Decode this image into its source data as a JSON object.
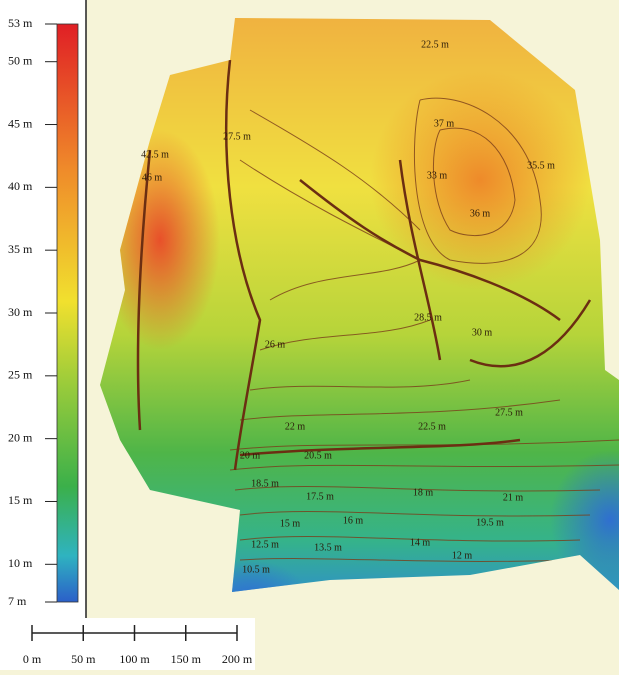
{
  "legend": {
    "lim": [
      7,
      53
    ],
    "ticks": [
      {
        "value": 53,
        "label": "53 m"
      },
      {
        "value": 50,
        "label": "50 m"
      },
      {
        "value": 45,
        "label": "45 m"
      },
      {
        "value": 40,
        "label": "40 m"
      },
      {
        "value": 35,
        "label": "35 m"
      },
      {
        "value": 30,
        "label": "30 m"
      },
      {
        "value": 25,
        "label": "25 m"
      },
      {
        "value": 20,
        "label": "20 m"
      },
      {
        "value": 15,
        "label": "15 m"
      },
      {
        "value": 10,
        "label": "10 m"
      },
      {
        "value": 7,
        "label": "7 m"
      }
    ]
  },
  "scale_bar": {
    "lim": [
      0,
      200
    ],
    "ticks": [
      {
        "value": 0,
        "label": "0 m"
      },
      {
        "value": 50,
        "label": "50 m"
      },
      {
        "value": 100,
        "label": "100 m"
      },
      {
        "value": 150,
        "label": "150 m"
      },
      {
        "value": 200,
        "label": "200 m"
      }
    ]
  },
  "contour_labels": [
    "22.5 m",
    "22 m",
    "20.5 m",
    "20 m",
    "18.5 m",
    "17.5 m",
    "18 m",
    "16 m",
    "15 m",
    "14 m",
    "13.5 m",
    "12.5 m",
    "12 m",
    "10.5 m",
    "19.5 m",
    "21 m",
    "36 m",
    "35.5 m",
    "37 m",
    "33 m",
    "42.5 m",
    "46 m",
    "30 m",
    "28.5 m",
    "27.5 m",
    "26 m",
    "27.5 m",
    "22.5 m"
  ]
}
